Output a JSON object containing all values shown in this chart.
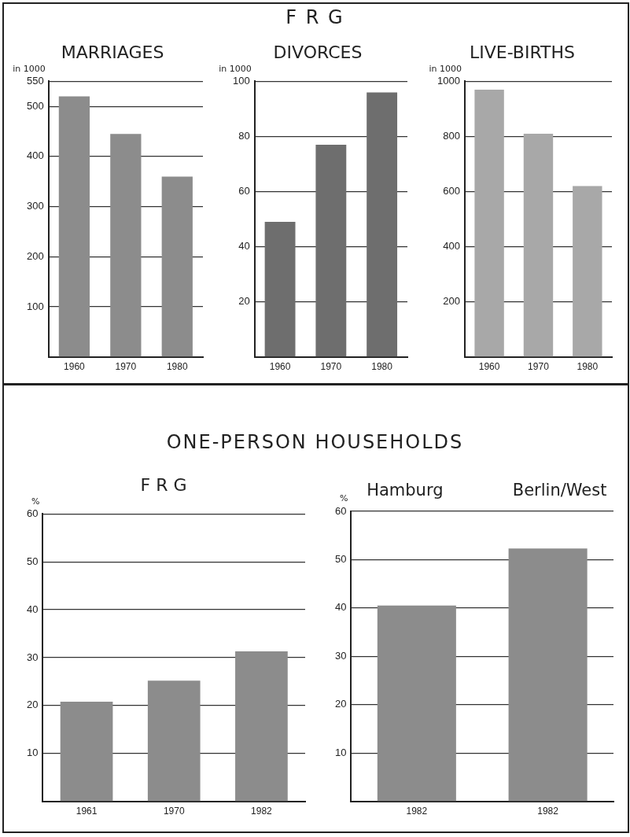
{
  "chart_data": [
    {
      "type": "bar",
      "title": "MARRIAGES",
      "ylabel": "in 1000",
      "annotations": [
        "F R G"
      ],
      "categories": [
        "1960",
        "1970",
        "1980"
      ],
      "values": [
        520,
        445,
        360
      ],
      "color": "#8c8c8c",
      "ylim": [
        0,
        550
      ],
      "yticks": [
        100,
        200,
        300,
        400,
        500,
        550
      ],
      "grid": "y",
      "legend": false
    },
    {
      "type": "bar",
      "title": "DIVORCES",
      "ylabel": "in 1000",
      "categories": [
        "1960",
        "1970",
        "1980"
      ],
      "values": [
        49,
        77,
        96
      ],
      "color": "#6e6e6e",
      "ylim": [
        0,
        100
      ],
      "yticks": [
        20,
        40,
        60,
        80,
        100
      ],
      "grid": "y",
      "legend": false
    },
    {
      "type": "bar",
      "title": "LIVE-BIRTHS",
      "ylabel": "in 1000",
      "categories": [
        "1960",
        "1970",
        "1980"
      ],
      "values": [
        970,
        810,
        620
      ],
      "color": "#a8a8a8",
      "ylim": [
        0,
        1000
      ],
      "yticks": [
        200,
        400,
        600,
        800,
        1000
      ],
      "grid": "y",
      "legend": false
    },
    {
      "type": "bar",
      "title": "F R G",
      "ylabel": "%",
      "annotations": [
        "ONE-PERSON  HOUSEHOLDS"
      ],
      "categories": [
        "1961",
        "1970",
        "1982"
      ],
      "values": [
        20.8,
        25.2,
        31.3
      ],
      "color": "#8c8c8c",
      "ylim": [
        0,
        60
      ],
      "yticks": [
        10,
        20,
        30,
        40,
        50,
        60
      ],
      "grid": "y",
      "legend": false
    },
    {
      "type": "bar",
      "ylabel": "%",
      "annotations": [
        "Hamburg",
        "Berlin/West"
      ],
      "categories": [
        "1982",
        "1982"
      ],
      "values": [
        40.5,
        52.3
      ],
      "color": "#8c8c8c",
      "ylim": [
        0,
        60
      ],
      "yticks": [
        10,
        20,
        30,
        40,
        50,
        60
      ],
      "grid": "y",
      "legend": false
    }
  ]
}
